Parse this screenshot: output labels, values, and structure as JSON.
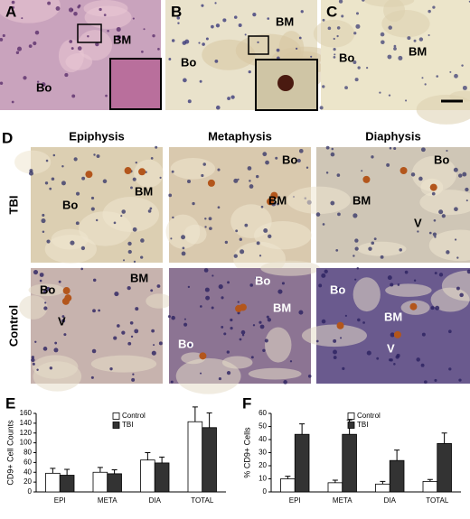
{
  "top_panels": [
    {
      "letter": "A",
      "labels": [
        "BM",
        "Bo"
      ]
    },
    {
      "letter": "B",
      "labels": [
        "BM",
        "Bo"
      ]
    },
    {
      "letter": "C",
      "labels": [
        "BM",
        "Bo"
      ]
    }
  ],
  "grid_panel": {
    "letter": "D",
    "columns": [
      "Epiphysis",
      "Metaphysis",
      "Diaphysis"
    ],
    "rows": [
      {
        "name": "TBI",
        "cells": [
          [
            "Bo",
            "BM"
          ],
          [
            "Bo",
            "BM"
          ],
          [
            "Bo",
            "BM",
            "V"
          ]
        ]
      },
      {
        "name": "Control",
        "cells": [
          [
            "Bo",
            "BM",
            "V"
          ],
          [
            "BM",
            "Bo",
            "Bo"
          ],
          [
            "Bo",
            "BM",
            "V"
          ]
        ]
      }
    ]
  },
  "chart_data": [
    {
      "type": "bar",
      "label": "E",
      "ylabel": "CD9+ Cell Counts",
      "categories": [
        "EPI",
        "META",
        "DIA",
        "TOTAL"
      ],
      "ylim": [
        0,
        160
      ],
      "yticks": [
        0,
        20,
        40,
        60,
        80,
        100,
        120,
        140,
        160
      ],
      "legend": "top-center",
      "series": [
        {
          "name": "Control",
          "color": "#ffffff",
          "values": [
            38,
            40,
            65,
            143
          ],
          "errors": [
            10,
            10,
            15,
            30
          ]
        },
        {
          "name": "TBI",
          "color": "#333333",
          "values": [
            34,
            37,
            59,
            131
          ],
          "errors": [
            12,
            8,
            12,
            30
          ]
        }
      ]
    },
    {
      "type": "bar",
      "label": "F",
      "ylabel": "% CD9+ Cells",
      "categories": [
        "EPI",
        "META",
        "DIA",
        "TOTAL"
      ],
      "ylim": [
        0,
        60
      ],
      "yticks": [
        0,
        10,
        20,
        30,
        40,
        50,
        60
      ],
      "legend": "top-center",
      "series": [
        {
          "name": "Control",
          "color": "#ffffff",
          "values": [
            10,
            7,
            6,
            8
          ],
          "errors": [
            2,
            2,
            2,
            1.5
          ]
        },
        {
          "name": "TBI",
          "color": "#333333",
          "values": [
            44,
            44,
            24,
            37
          ],
          "errors": [
            8,
            11,
            8,
            8
          ]
        }
      ]
    }
  ]
}
